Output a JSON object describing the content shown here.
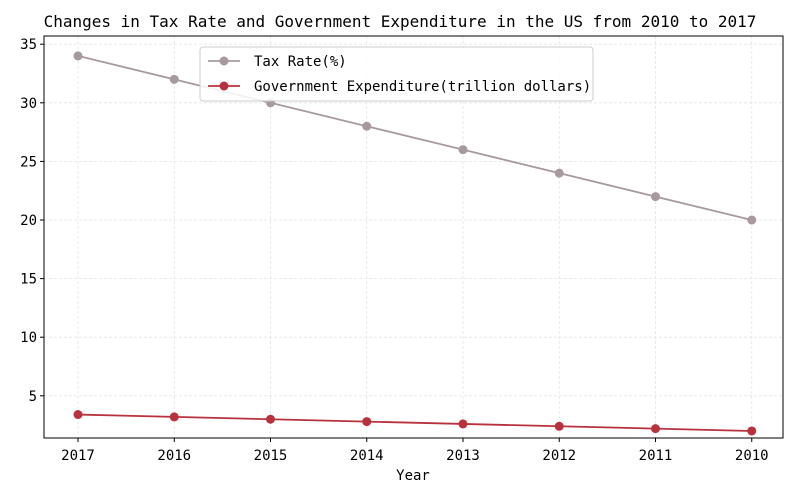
{
  "chart_data": {
    "type": "line",
    "title": "Changes in Tax Rate and Government Expenditure in the US from 2010 to 2017",
    "xlabel": "Year",
    "ylabel": "",
    "categories": [
      "2017",
      "2016",
      "2015",
      "2014",
      "2013",
      "2012",
      "2011",
      "2010"
    ],
    "yticks": [
      5,
      10,
      15,
      20,
      25,
      30,
      35
    ],
    "ylim": [
      1.4,
      35.7
    ],
    "grid": true,
    "legend_position": "top-center",
    "series": [
      {
        "name": "Tax Rate(%)",
        "color": "#a89a9c",
        "marker": "circle",
        "values": [
          34,
          32,
          30,
          28,
          26,
          24,
          22,
          20
        ]
      },
      {
        "name": "Government Expenditure(trillion dollars)",
        "color": "#b8323e",
        "marker": "circle",
        "values": [
          3.4,
          3.2,
          3.0,
          2.8,
          2.6,
          2.4,
          2.2,
          2.0
        ]
      }
    ]
  }
}
